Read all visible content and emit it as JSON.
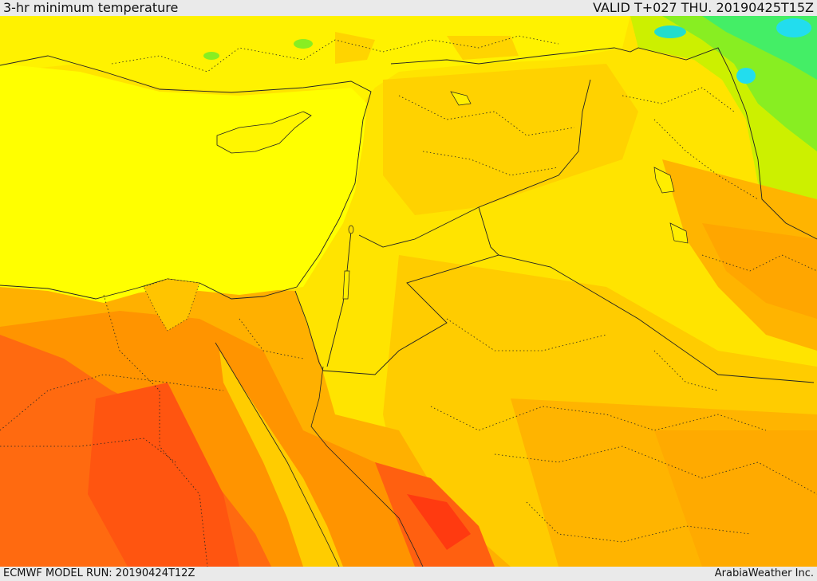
{
  "header": {
    "title": "3-hr minimum temperature",
    "valid": "VALID T+027 THU. 20190425T15Z"
  },
  "footer": {
    "model_run": "ECMWF MODEL RUN: 20190424T12Z",
    "credit": "ArabiaWeather Inc."
  },
  "colors": {
    "sea": "#ffff00",
    "land_light": "#ffe400",
    "land_mid": "#ffcc00",
    "land_orange": "#ffaa00",
    "land_deep": "#ff8800",
    "land_red": "#ff5a10",
    "cool_green": "#88ee22",
    "cold_cyan": "#22ddcc"
  }
}
